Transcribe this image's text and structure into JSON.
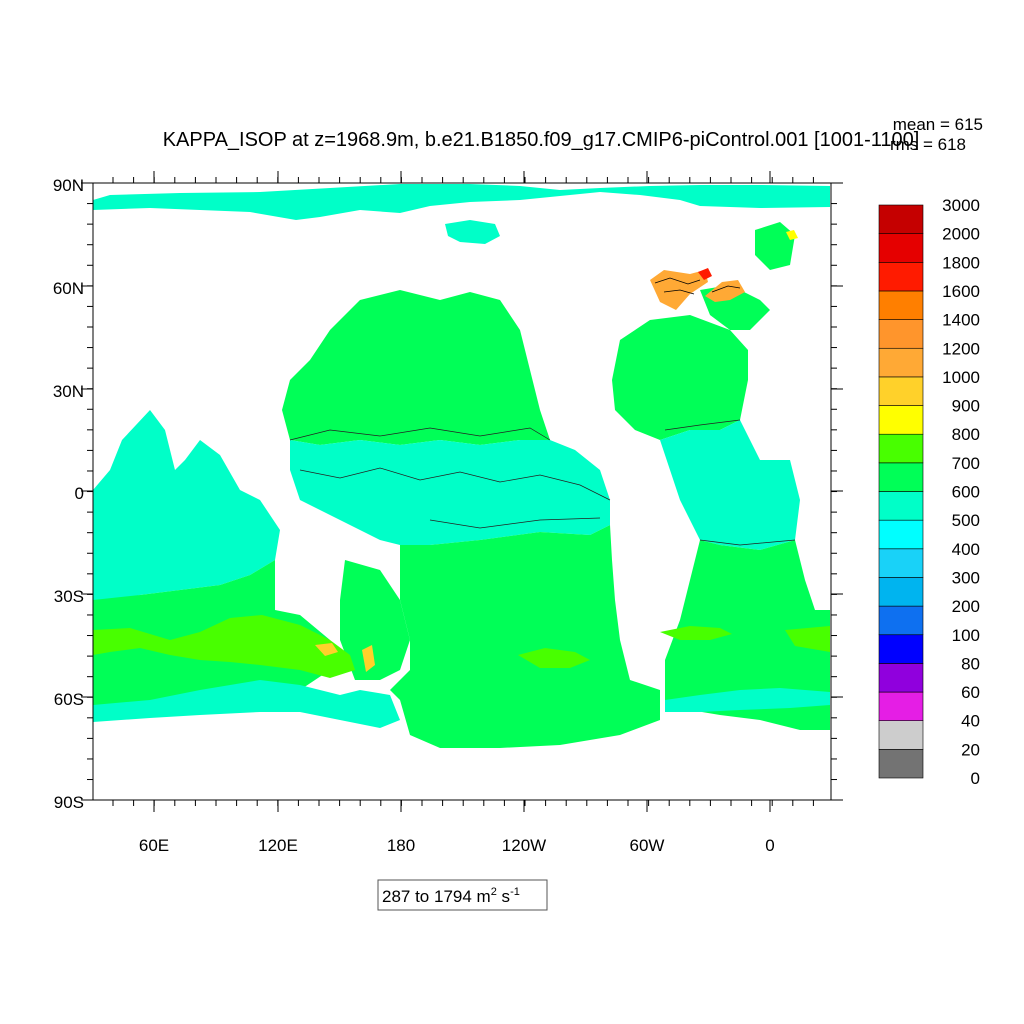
{
  "title": "KAPPA_ISOP at z=1968.9m, b.e21.B1850.f09_g17.CMIP6-piControl.001 [1001-1100]",
  "stats": {
    "mean": "mean = 615",
    "rms": "rms = 618"
  },
  "range_box": {
    "prefix": "287 to 1794 m",
    "exp1": "2",
    "middle": " s",
    "exp2": "-1"
  },
  "axes": {
    "lat_labels": [
      "90N",
      "60N",
      "30N",
      "0",
      "30S",
      "60S",
      "90S"
    ],
    "lon_labels": [
      "60E",
      "120E",
      "180",
      "120W",
      "60W",
      "0"
    ]
  },
  "colorbar": {
    "colors": [
      "#737373",
      "#cdcdcd",
      "#e51ee5",
      "#9000dd",
      "#0000ff",
      "#0e70f0",
      "#00b4ef",
      "#19d2f8",
      "#00ffff",
      "#00ffc8",
      "#00ff57",
      "#48ff00",
      "#ffff00",
      "#ffd12a",
      "#ffa935",
      "#ff952c",
      "#ff7f00",
      "#ff1b00",
      "#e50000",
      "#c50000"
    ],
    "labels": [
      "3000",
      "2000",
      "1800",
      "1600",
      "1400",
      "1200",
      "1000",
      "900",
      "800",
      "700",
      "600",
      "500",
      "400",
      "300",
      "200",
      "100",
      "80",
      "60",
      "40",
      "20",
      "0"
    ]
  },
  "fill_colors": {
    "ocean_main": "#00ff57",
    "ocean_low": "#00ffc8",
    "ocean_high": "#48ff00",
    "hot_1": "#ffd12a",
    "hot_2": "#ffa935",
    "hot_3": "#ff1b00",
    "deep_blue": "#19d2f8"
  }
}
